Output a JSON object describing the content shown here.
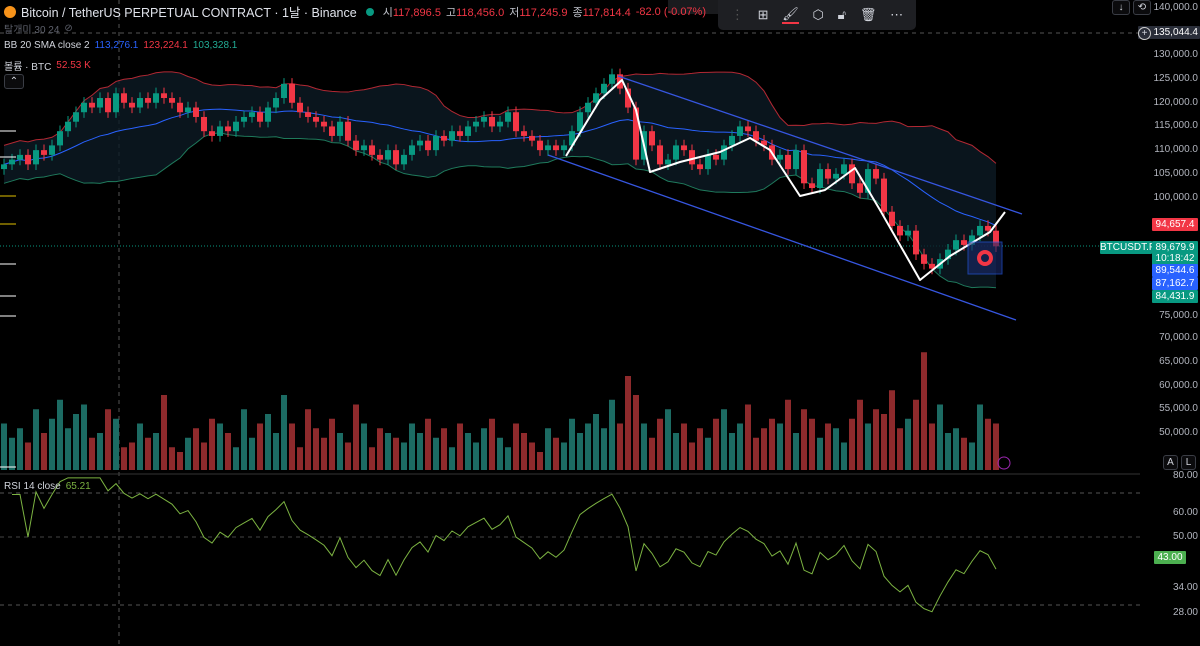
{
  "header": {
    "title": "Bitcoin / TetherUS PERPETUAL CONTRACT · 1날 · Binance",
    "open_label": "시",
    "open": "117,896.5",
    "high_label": "고",
    "high": "118,456.0",
    "low_label": "저",
    "low": "117,245.9",
    "close_label": "종",
    "close": "117,814.4",
    "change": "-82.0 (-0.07%)",
    "sub": "탈개미 30 24"
  },
  "indicators": {
    "bb_label": "BB 20 SMA close 2",
    "bb_mid": "113,276.1",
    "bb_upper": "123,224.1",
    "bb_lower": "103,328.1",
    "vol_label": "볼륨 · BTC",
    "vol_value": "52.53 K",
    "rsi_label": "RSI 14 close",
    "rsi_value": "65.21"
  },
  "price_axis": [
    "140,000.0",
    "130,000.0",
    "125,000.0",
    "120,000.0",
    "115,000.0",
    "110,000.0",
    "105,000.0",
    "100,000.0",
    "75,000.0",
    "70,000.0",
    "65,000.0",
    "60,000.0",
    "55,000.0",
    "50,000.0"
  ],
  "price_ticks": [
    140000,
    130000,
    125000,
    120000,
    115000,
    110000,
    105000,
    100000,
    75000
  ],
  "vol_ticks": [
    70000,
    65000,
    60000,
    55000,
    50000
  ],
  "rsi_axis": [
    "80.00",
    "60.00",
    "50.00",
    "34.00",
    "28.00"
  ],
  "rsi_ticks": [
    80,
    60,
    50,
    34,
    28
  ],
  "tags": {
    "crosshair": "135,044.4",
    "alert": "94,657.4",
    "symbol": "BTCUSDT.P",
    "last": "89,679.9",
    "countdown": "10:18:42",
    "blue1": "89,544.6",
    "blue2": "87,162.7",
    "green": "84,431.9",
    "rsi_now": "43.00"
  },
  "buttons": {
    "auto": "A",
    "log": "L"
  },
  "colors": {
    "up": "#089981",
    "down": "#f23645",
    "bb_mid": "#2962ff",
    "bb_up": "#f23645",
    "bb_low": "#22ab94",
    "rsi": "#7cb342"
  },
  "chart_data": {
    "type": "candlestick",
    "closes_k": [
      107,
      108,
      109,
      107,
      110,
      109,
      111,
      114,
      116,
      118,
      120,
      119,
      121,
      118,
      122,
      120,
      119,
      121,
      120,
      122,
      121,
      120,
      118,
      119,
      117,
      114,
      113,
      115,
      114,
      116,
      117,
      118,
      116,
      119,
      121,
      124,
      120,
      118,
      117,
      116,
      115,
      113,
      116,
      112,
      110,
      111,
      109,
      108,
      110,
      107,
      109,
      111,
      112,
      110,
      113,
      112,
      114,
      113,
      115,
      116,
      117,
      115,
      116,
      118,
      114,
      113,
      112,
      110,
      111,
      110,
      111,
      114,
      118,
      120,
      122,
      124,
      126,
      123,
      119,
      108,
      114,
      111,
      107,
      108,
      111,
      110,
      107,
      106,
      109,
      108,
      111,
      113,
      115,
      114,
      112,
      111,
      108,
      109,
      106,
      110,
      103,
      102,
      106,
      104,
      105,
      107,
      103,
      101,
      106,
      104,
      97,
      94,
      92,
      93,
      88,
      86,
      85,
      87,
      89,
      91,
      90,
      92,
      94,
      93,
      89.7
    ],
    "volumes_k": [
      52,
      49,
      51,
      48,
      55,
      50,
      53,
      57,
      51,
      54,
      56,
      49,
      50,
      55,
      53,
      47,
      48,
      52,
      49,
      50,
      58,
      47,
      46,
      49,
      51,
      48,
      53,
      52,
      50,
      47,
      55,
      49,
      52,
      54,
      50,
      58,
      52,
      47,
      55,
      51,
      49,
      53,
      50,
      48,
      56,
      52,
      47,
      51,
      50,
      49,
      48,
      52,
      50,
      53,
      49,
      51,
      47,
      52,
      50,
      48,
      51,
      53,
      49,
      47,
      52,
      50,
      48,
      46,
      51,
      49,
      48,
      53,
      50,
      52,
      54,
      51,
      57,
      52,
      62,
      58,
      52,
      49,
      53,
      55,
      50,
      52,
      48,
      51,
      49,
      53,
      55,
      50,
      52,
      56,
      49,
      51,
      53,
      52,
      57,
      50,
      55,
      53,
      49,
      52,
      51,
      48,
      53,
      57,
      52,
      55,
      54,
      59,
      51,
      53,
      57,
      67,
      52,
      56,
      50,
      51,
      49,
      48,
      56,
      53,
      52
    ]
  }
}
